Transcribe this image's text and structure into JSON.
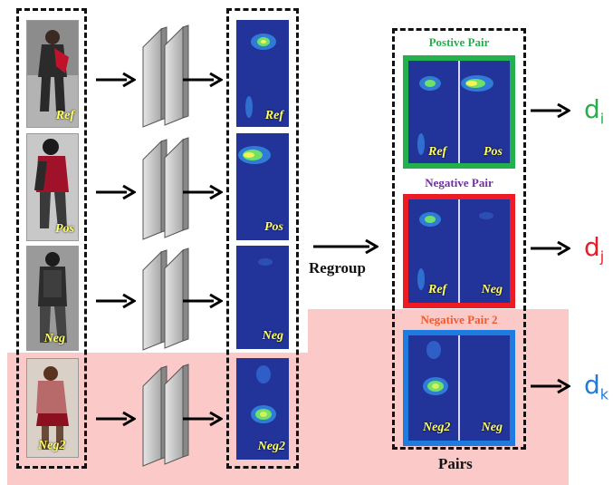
{
  "rows": [
    {
      "label": "Ref"
    },
    {
      "label": "Pos"
    },
    {
      "label": "Neg"
    },
    {
      "label": "Neg2"
    }
  ],
  "regroup_label": "Regroup",
  "pairs_label": "Pairs",
  "pairs": [
    {
      "title": "Postive Pair",
      "left": "Ref",
      "right": "Pos",
      "distance": "d",
      "subscript": "i",
      "color": "#22b14c",
      "title_color": "#22b14c"
    },
    {
      "title": "Negative Pair",
      "left": "Ref",
      "right": "Neg",
      "distance": "d",
      "subscript": "j",
      "color": "#ed1c24",
      "title_color": "#7030a0"
    },
    {
      "title": "Negative Pair 2",
      "left": "Neg2",
      "right": "Neg",
      "distance": "d",
      "subscript": "k",
      "color": "#1e7be0",
      "title_color": "#f05a28"
    }
  ]
}
